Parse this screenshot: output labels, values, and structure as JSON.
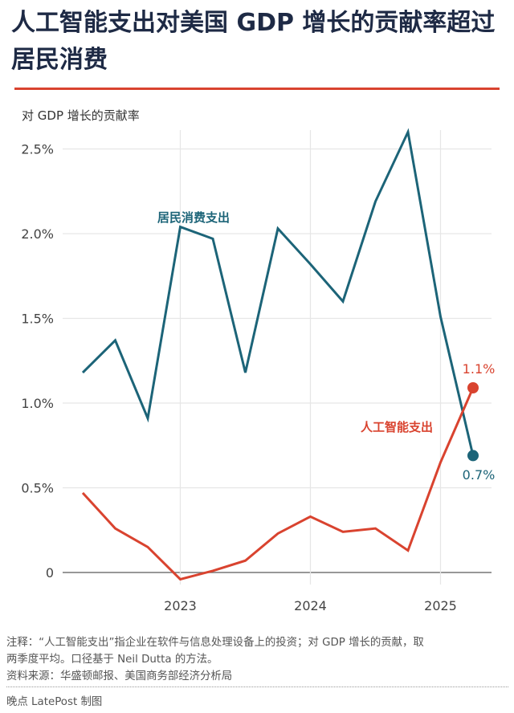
{
  "header": {
    "title": "人工智能支出对美国 GDP 增长的贡献率超过居民消费",
    "subtitle": "对 GDP 增长的贡献率"
  },
  "footer": {
    "note_line1": "注释：“人工智能支出”指企业在软件与信息处理设备上的投资；对 GDP 增长的贡献，取",
    "note_line2": "两季度平均。口径基于 Neil Dutta 的方法。",
    "source": "资料来源：华盛顿邮报、美国商务部经济分析局",
    "credit": "晚点 LatePost 制图"
  },
  "colors": {
    "consumer": "#1c6478",
    "ai": "#d9432f",
    "title": "#1e2a45",
    "grid": "#e6e6e6",
    "axis": "#777777"
  },
  "chart_data": {
    "type": "line",
    "title": "人工智能支出对美国 GDP 增长的贡献率超过居民消费",
    "ylabel": "对 GDP 增长的贡献率",
    "xlabel": "",
    "ylim": [
      0,
      2.5
    ],
    "yticks": [
      "0",
      "0.5%",
      "1.0%",
      "1.5%",
      "2.0%",
      "2.5%"
    ],
    "xticks": [
      "2023",
      "2024",
      "2025"
    ],
    "grid": true,
    "x": [
      "2022Q2",
      "2022Q3",
      "2022Q4",
      "2023Q1",
      "2023Q2",
      "2023Q3",
      "2023Q4",
      "2024Q1",
      "2024Q2",
      "2024Q3",
      "2024Q4",
      "2025Q1",
      "2025Q2"
    ],
    "series": [
      {
        "name": "居民消费支出",
        "values": [
          1.18,
          1.37,
          0.91,
          2.04,
          1.97,
          1.18,
          2.03,
          1.82,
          1.6,
          2.19,
          2.6,
          1.51,
          0.69
        ],
        "end_label": "0.7%"
      },
      {
        "name": "人工智能支出",
        "values": [
          0.47,
          0.26,
          0.15,
          -0.04,
          0.01,
          0.07,
          0.23,
          0.33,
          0.24,
          0.26,
          0.13,
          0.65,
          1.09
        ],
        "end_label": "1.1%"
      }
    ]
  }
}
